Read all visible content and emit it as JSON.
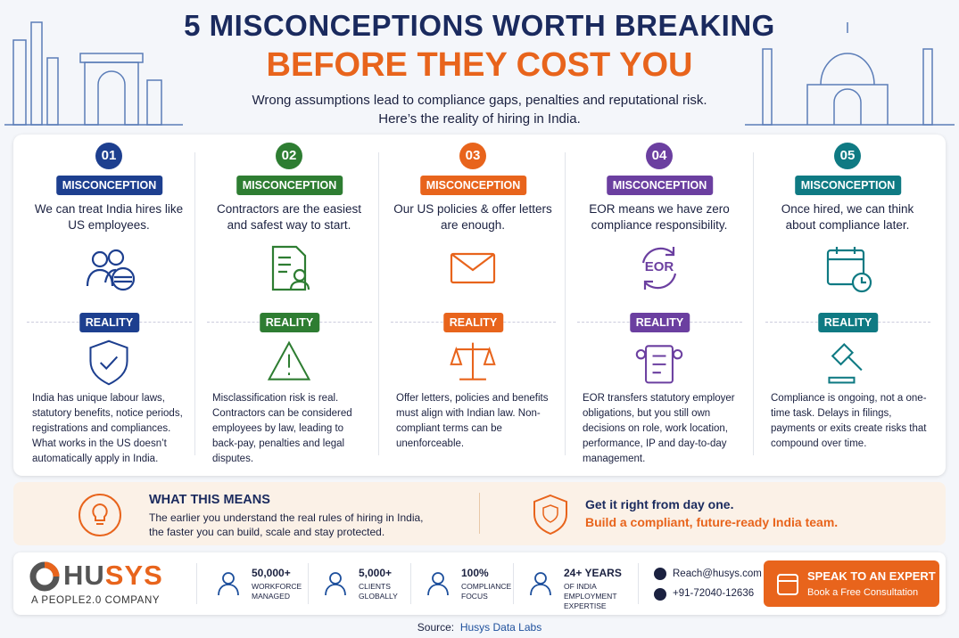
{
  "header": {
    "title": "5 MISCONCEPTIONS WORTH BREAKING",
    "highlight": "BEFORE THEY COST YOU",
    "subtitle": [
      "Wrong assumptions lead to compliance gaps, penalties and reputational risk.",
      "Here’s the reality of hiring in India."
    ]
  },
  "cards": [
    {
      "number": "01",
      "color": "#1d3f8f",
      "misconception_label": "MISCONCEPTION",
      "misconception": "We can treat India hires like US employees.",
      "reality_label": "REALITY",
      "reality": "India has unique labour laws, statutory benefits, notice periods, registrations and compliances. What works in the US doesn’t automatically apply in India."
    },
    {
      "number": "02",
      "color": "#2e7d32",
      "misconception_label": "MISCONCEPTION",
      "misconception": "Contractors are the easiest and safest way to start.",
      "reality_label": "REALITY",
      "reality": "Misclassification risk is real. Contractors can be considered employees by law, leading to back-pay, penalties and legal disputes."
    },
    {
      "number": "03",
      "color": "#e8641c",
      "misconception_label": "MISCONCEPTION",
      "misconception": "Our US policies & offer letters are enough.",
      "reality_label": "REALITY",
      "reality": "Offer letters, policies and benefits must align with Indian law. Non-compliant terms can be unenforceable."
    },
    {
      "number": "04",
      "color": "#6b3fa0",
      "misconception_label": "MISCONCEPTION",
      "misconception": "EOR means we have zero compliance responsibility.",
      "icon_label": "EOR",
      "reality_label": "REALITY",
      "reality": "EOR transfers statutory employer obligations, but you still own decisions on role, work location, performance, IP and day-to-day management."
    },
    {
      "number": "05",
      "color": "#0f7a83",
      "misconception_label": "MISCONCEPTION",
      "misconception": "Once hired, we can think about compliance later.",
      "reality_label": "REALITY",
      "reality": "Compliance is ongoing, not a one-time task. Delays in filings, payments or exits create risks that compound over time."
    }
  ],
  "summary": {
    "heading": "WHAT THIS MEANS",
    "text": "The earlier you understand the real rules of hiring in India, the faster you can build, scale and stay protected.",
    "cta_line1": "Get it right from day one.",
    "cta_line2": "Build a compliant, future-ready India team."
  },
  "footer": {
    "brand": "HUSYS",
    "tagline": "A PEOPLE2.0 COMPANY",
    "stats": [
      {
        "value": "50,000+",
        "label": "WORKFORCE MANAGED"
      },
      {
        "value": "5,000+",
        "label": "CLIENTS GLOBALLY"
      },
      {
        "value": "100%",
        "label": "COMPLIANCE FOCUS"
      },
      {
        "value": "24+ YEARS",
        "label": "OF INDIA EMPLOYMENT EXPERTISE"
      }
    ],
    "email": "Reach@husys.com",
    "phone": "+91-72040-12636",
    "button_title": "SPEAK TO AN EXPERT",
    "button_subtitle": "Book a Free Consultation"
  },
  "source": {
    "label": "Source:",
    "name": "Husys Data Labs"
  }
}
